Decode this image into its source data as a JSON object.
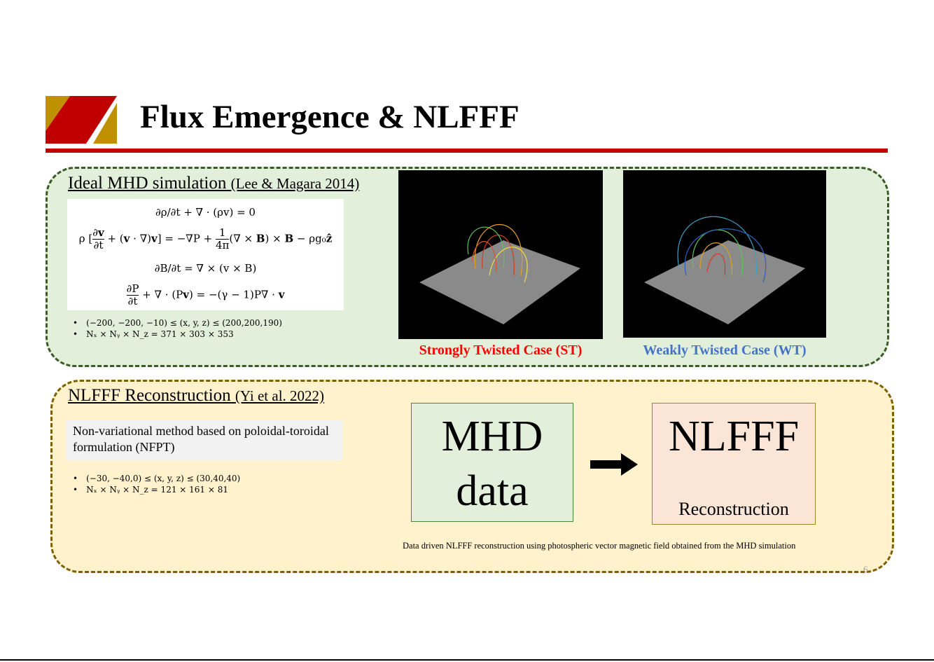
{
  "title": "Flux Emergence & NLFFF",
  "colors": {
    "accent_red": "#c00000",
    "logo_gold": "#bf9000",
    "st_caption": "#ff0000",
    "wt_caption": "#4472c4"
  },
  "mhd_section": {
    "heading": "Ideal MHD simulation",
    "citation": "(Lee & Magara 2014)",
    "equations": [
      "∂ρ/∂t + ∇ · (ρv) = 0",
      "ρ[∂v/∂t + (v · ∇)v] = −∇P + 1/4π (∇ × B) × B − ρg₀ẑ",
      "∂B/∂t = ∇ × (v × B)",
      "∂P/∂t + ∇ · (Pv) = −(γ − 1)P∇ · v"
    ],
    "bullets": [
      "(−200, −200, −10) ≤ (x, y, z) ≤ (200,200,190)",
      "Nₓ × Nᵧ × N_z = 371 × 303 × 353"
    ],
    "cases": [
      {
        "caption": "Strongly Twisted Case (ST)"
      },
      {
        "caption": "Weakly Twisted Case (WT)"
      }
    ]
  },
  "nlfff_section": {
    "heading": "NLFFF Reconstruction",
    "citation": "(Yi et al. 2022)",
    "method": "Non-variational method based on poloidal-toroidal formulation (NFPT)",
    "bullets": [
      "(−30, −40,0) ≤ (x, y, z) ≤ (30,40,40)",
      "Nₓ × Nᵧ × N_z = 121 × 161 × 81"
    ],
    "flow": {
      "from_line1": "MHD",
      "from_line2": "data",
      "to": "NLFFF",
      "to_sub": "Reconstruction"
    },
    "caption": "Data driven NLFFF reconstruction using  photospheric vector magnetic field obtained from the MHD simulation"
  },
  "page_number": "6"
}
